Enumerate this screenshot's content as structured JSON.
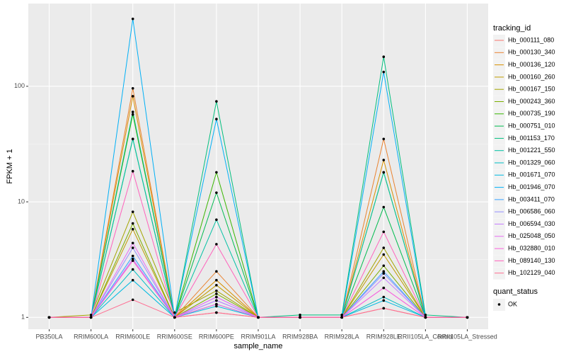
{
  "chart_data": {
    "type": "line",
    "x_label": "sample_name",
    "y_label": "FPKM + 1",
    "categories": [
      "PB350LA",
      "RRIM600LA",
      "RRIM600LE",
      "RRIM600SE",
      "RRIM600PE",
      "RRIM901LA",
      "RRIM928BA",
      "RRIM928LA",
      "RRIM928LE",
      "RRII105LA_Control",
      "RRII105LA_Stressed"
    ],
    "log_y": true,
    "grid": true,
    "legend_position": "right",
    "legend_title": "tracking_id",
    "ylim": [
      0.79,
      520
    ],
    "yticks": [
      1,
      10,
      100
    ],
    "point_color": "#000000",
    "shape_legend": {
      "title": "quant_status",
      "labels": [
        "OK"
      ]
    },
    "series": [
      {
        "name": "Hb_000111_080",
        "color": "#F8766D",
        "values": [
          1,
          1,
          3.1,
          1,
          1.1,
          1,
          1,
          1,
          1.2,
          1,
          1
        ]
      },
      {
        "name": "Hb_000130_340",
        "color": "#EA8331",
        "values": [
          1,
          1,
          96,
          1,
          2.5,
          1,
          1,
          1,
          35,
          1,
          1
        ]
      },
      {
        "name": "Hb_000136_120",
        "color": "#D89000",
        "values": [
          1,
          1,
          82,
          1,
          2.1,
          1,
          1,
          1,
          23,
          1,
          1
        ]
      },
      {
        "name": "Hb_000160_260",
        "color": "#C09B00",
        "values": [
          1,
          1,
          5.8,
          1,
          1.9,
          1,
          1,
          1,
          3.5,
          1,
          1
        ]
      },
      {
        "name": "Hb_000167_150",
        "color": "#A3A500",
        "values": [
          1,
          1.05,
          8.2,
          1.1,
          1.7,
          1,
          1,
          1,
          4,
          1,
          1
        ]
      },
      {
        "name": "Hb_000243_360",
        "color": "#7CAE00",
        "values": [
          1,
          1,
          6.5,
          1,
          1.6,
          1,
          1,
          1,
          2.8,
          1,
          1
        ]
      },
      {
        "name": "Hb_000735_190",
        "color": "#39B600",
        "values": [
          1,
          1,
          57,
          1,
          18,
          1,
          1,
          1,
          18,
          1,
          1
        ]
      },
      {
        "name": "Hb_000751_010",
        "color": "#00BB4E",
        "values": [
          1,
          1,
          35,
          1,
          12,
          1,
          1,
          1,
          9,
          1,
          1
        ]
      },
      {
        "name": "Hb_001153_170",
        "color": "#00BF7D",
        "values": [
          1,
          1,
          60,
          1,
          74,
          1,
          1.05,
          1.05,
          180,
          1.05,
          1
        ]
      },
      {
        "name": "Hb_001221_550",
        "color": "#00C1A3",
        "values": [
          1,
          1,
          35,
          1,
          7,
          1,
          1,
          1,
          18,
          1,
          1
        ]
      },
      {
        "name": "Hb_001329_060",
        "color": "#00BFC4",
        "values": [
          1,
          1,
          2.6,
          1,
          1.3,
          1,
          1,
          1,
          1.5,
          1,
          1
        ]
      },
      {
        "name": "Hb_001671_070",
        "color": "#00BAE0",
        "values": [
          1,
          1,
          2.1,
          1,
          1.25,
          1,
          1,
          1,
          1.4,
          1,
          1
        ]
      },
      {
        "name": "Hb_001946_070",
        "color": "#00B0F6",
        "values": [
          1,
          1,
          383,
          1,
          52,
          1,
          1,
          1,
          133,
          1,
          1
        ]
      },
      {
        "name": "Hb_003411_070",
        "color": "#35A2FF",
        "values": [
          1,
          1,
          3.4,
          1,
          1.4,
          1,
          1,
          1,
          2.5,
          1,
          1
        ]
      },
      {
        "name": "Hb_006586_060",
        "color": "#9590FF",
        "values": [
          1,
          1,
          4,
          1,
          1.5,
          1,
          1,
          1,
          2.4,
          1,
          1
        ]
      },
      {
        "name": "Hb_006594_030",
        "color": "#C77CFF",
        "values": [
          1,
          1,
          3.2,
          1,
          1.4,
          1,
          1,
          1,
          2.2,
          1,
          1
        ]
      },
      {
        "name": "Hb_025048_050",
        "color": "#E76BF3",
        "values": [
          1,
          1,
          4.4,
          1,
          1.5,
          1,
          1,
          1,
          1.8,
          1,
          1
        ]
      },
      {
        "name": "Hb_032880_010",
        "color": "#FA62DB",
        "values": [
          1,
          1,
          3.1,
          1,
          1.3,
          1,
          1,
          1,
          1.8,
          1,
          1
        ]
      },
      {
        "name": "Hb_089140_130",
        "color": "#FF62BC",
        "values": [
          1,
          1,
          18.4,
          1,
          4.3,
          1,
          1,
          1,
          5.5,
          1,
          1
        ]
      },
      {
        "name": "Hb_102129_040",
        "color": "#FF6C91",
        "values": [
          1,
          1,
          1.42,
          1,
          1.1,
          1,
          1,
          1,
          1.2,
          1,
          1
        ]
      }
    ]
  }
}
